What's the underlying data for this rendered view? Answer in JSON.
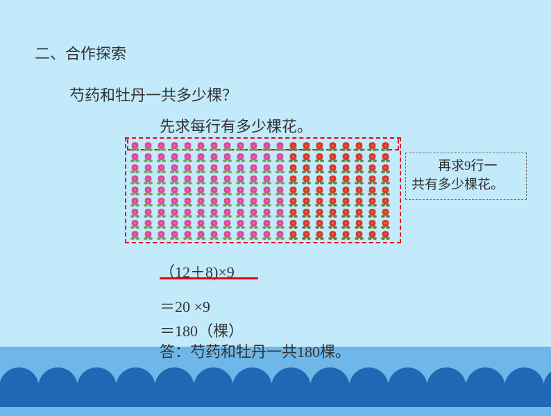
{
  "header": "二、合作探索",
  "question": "芍药和牡丹一共多少棵？",
  "hint_top": "先求每行有多少棵花。",
  "side_box": {
    "line1": "　　再求9行一",
    "line2": "共有多少棵花。"
  },
  "equations": {
    "eq1": "（12＋8)×9",
    "eq2": "＝20 ×9",
    "eq3": "＝180（棵）"
  },
  "answer": "答：芍药和牡丹一共180棵。",
  "grid": {
    "rows": 9,
    "cols": 20,
    "pink_cols": 12,
    "red_cols": 8,
    "pink_color": "#d94a9a",
    "pink_leaf": "#6aa84f",
    "red_color": "#d73a2a",
    "red_leaf": "#5a8a3a",
    "outer_border": "#e30613"
  },
  "water": {
    "band_color": "#6eb7e8",
    "scallop_color": "#1f68b4",
    "scallop_count": 15
  },
  "colors": {
    "background": "#c2eafb",
    "text": "#333333",
    "underline": "#e30613",
    "side_box_border": "#666666"
  },
  "typography": {
    "font_family": "KaiTi",
    "title_fontsize": 22,
    "body_fontsize": 22,
    "side_box_fontsize": 19
  }
}
